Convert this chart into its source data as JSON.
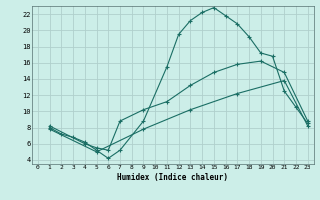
{
  "background_color": "#cceee8",
  "grid_color": "#b0d0cc",
  "line_color": "#1a6e64",
  "xlabel": "Humidex (Indice chaleur)",
  "xlim": [
    -0.5,
    23.5
  ],
  "ylim": [
    3.5,
    23
  ],
  "yticks": [
    4,
    6,
    8,
    10,
    12,
    14,
    16,
    18,
    20,
    22
  ],
  "xticks": [
    0,
    1,
    2,
    3,
    4,
    5,
    6,
    7,
    8,
    9,
    10,
    11,
    12,
    13,
    14,
    15,
    16,
    17,
    18,
    19,
    20,
    21,
    22,
    23
  ],
  "curve1_x": [
    1,
    2,
    3,
    4,
    5,
    6,
    7,
    9,
    11,
    12,
    13,
    14,
    15,
    16,
    17,
    18,
    19,
    20,
    21,
    22,
    23
  ],
  "curve1_y": [
    8,
    7.2,
    6.8,
    6.2,
    5.2,
    4.2,
    5.2,
    8.8,
    15.5,
    19.5,
    21.2,
    22.2,
    22.8,
    21.8,
    20.8,
    19.2,
    17.2,
    16.8,
    12.5,
    10.5,
    8.5
  ],
  "curve2_x": [
    1,
    4,
    5,
    6,
    7,
    9,
    11,
    13,
    15,
    17,
    19,
    21,
    23
  ],
  "curve2_y": [
    8.2,
    6.0,
    5.5,
    5.2,
    8.8,
    10.2,
    11.2,
    13.2,
    14.8,
    15.8,
    16.2,
    14.8,
    8.8
  ],
  "curve3_x": [
    1,
    5,
    9,
    13,
    17,
    21,
    23
  ],
  "curve3_y": [
    7.8,
    5.0,
    7.8,
    10.2,
    12.2,
    13.8,
    8.2
  ]
}
